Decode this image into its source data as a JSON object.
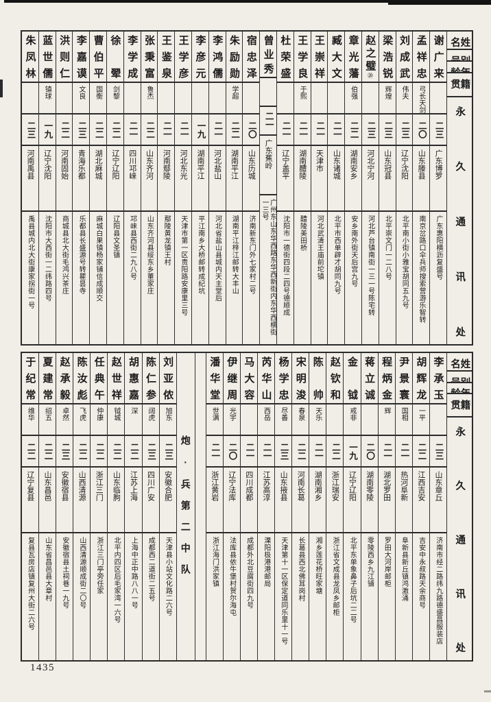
{
  "page": {
    "page_number": "1435",
    "unit_label": "炮·兵第二中队"
  },
  "headers": {
    "name": "姓名",
    "alias": "别号",
    "age": "年龄",
    "origin": "籍贯",
    "address": "永久通讯处"
  },
  "top_table": {
    "people": [
      {
        "name": "谢广来",
        "alias": "",
        "age": "二三",
        "origin": "广东博罗",
        "address": "广东惠阳横沥复盛号"
      },
      {
        "name": "孟祥忠",
        "alias": "弓长天剑",
        "age": "二〇",
        "origin": "山东滕县",
        "address": "南京岔路口伞兵师搜索营游乐智转"
      },
      {
        "name": "刘成武",
        "alias": "伟夫",
        "age": "二三",
        "origin": "辽宁沈阳",
        "address": "北平南小街小雅宝胡同五九号"
      },
      {
        "name": "梁浩锐",
        "alias": "辉煌",
        "age": "二三",
        "origin": "山东冠县",
        "address": "北平崇文门一二八号"
      },
      {
        "name": "赵之璧",
        "note": "⑳",
        "alias": "",
        "age": "二三",
        "origin": "河北宁河",
        "address": "河北芦台镇南街一三一号陈宅转"
      },
      {
        "name": "章光藩",
        "alias": "伯强",
        "age": "二二",
        "origin": "湖南安乡",
        "address": "安乡南外街天后宫九号"
      },
      {
        "name": "臧大文",
        "alias": "",
        "age": "二一",
        "origin": "山东诸城",
        "address": "北平市西单辟才胡同九号"
      },
      {
        "name": "王崇祥",
        "alias": "",
        "age": "二一",
        "origin": "天津市",
        "address": "河北武清王庙前坨镇"
      },
      {
        "name": "王学良",
        "alias": "于熙",
        "age": "二一",
        "origin": "湖南醴陵",
        "address": "醴陵美田桥"
      },
      {
        "name": "杜荣盛",
        "alias": "",
        "age": "二一",
        "origin": "辽宁盖平",
        "address": "沈阳市一德街四段二四号德顺成"
      },
      {
        "name": "曾业秀",
        "alias": "",
        "age": "二一",
        "origin": "广东蕉岭",
        "address": "广州东山东华西路东华西新街内东华西横街一三号"
      },
      {
        "name": "宿忠泽",
        "alias": "",
        "age": "二〇",
        "origin": "山东历城",
        "address": "济南新东门外七家村二号"
      },
      {
        "name": "朱励勋",
        "alias": "学超",
        "age": "二二",
        "origin": "湖南平江",
        "address": "湖南平江梓江邮转大丰山"
      },
      {
        "name": "李鸿儒",
        "alias": "",
        "age": "二一",
        "origin": "河北盐山",
        "address": "河北省盐山县城内天主堂后"
      },
      {
        "name": "李彦元",
        "alias": "",
        "age": "一九",
        "origin": "湖南平江",
        "address": "平江南乡大桥邮转成纪坑"
      },
      {
        "name": "王学彦",
        "alias": "",
        "age": "二一",
        "origin": "河北东光",
        "address": "天津市第一区贵阳路安康里三号"
      },
      {
        "name": "王鉴泉",
        "alias": "",
        "age": "二一",
        "origin": "河南鄢陵",
        "address": "鄢陵黄龙镇王村"
      },
      {
        "name": "张秉富",
        "alias": "鲁杰",
        "age": "二二",
        "origin": "山东齐河",
        "address": "山东齐河县绥东乡董家庄"
      },
      {
        "name": "李学成",
        "alias": "",
        "age": "二一",
        "origin": "四川邛崃",
        "address": "邛崃县西街二九八号"
      },
      {
        "name": "徐翚",
        "alias": "剑黎",
        "age": "二二",
        "origin": "辽宁辽阳",
        "address": "辽阳县文圣镇"
      },
      {
        "name": "曹伯平",
        "alias": "国衡",
        "age": "二二",
        "origin": "湖北麻城",
        "address": "麻城白果镇杨家铺信成顺交"
      },
      {
        "name": "李嘉谟",
        "alias": "文良",
        "age": "二三",
        "origin": "青海乐都",
        "address": "乐都县长盛源号转瞿昙寺"
      },
      {
        "name": "洪则仁",
        "alias": "",
        "age": "二二",
        "origin": "河南固始",
        "address": "商城县北大街毛鸿兴茶庄"
      },
      {
        "name": "蓝世儒",
        "alias": "镇球",
        "age": "一九",
        "origin": "辽宁沈阳",
        "address": "沈阳市大西街一二纬路四号"
      },
      {
        "name": "朱凤林",
        "alias": "",
        "age": "二三",
        "origin": "河南禹县",
        "address": "禹县城内北大街康家拐街一号"
      }
    ]
  },
  "bottom_table": {
    "people_right": [
      {
        "name": "李承玉",
        "alias": "",
        "age": "二三",
        "origin": "山东章丘",
        "address": "济南市经二路纬九路德盛昌服装店"
      },
      {
        "name": "胡辉龙",
        "alias": "一平",
        "age": "二二",
        "origin": "江西吉安",
        "address": "吉安中永叔路天余商号"
      },
      {
        "name": "尹景寰",
        "alias": "国相",
        "age": "二一",
        "origin": "热河阜新",
        "address": "阜新县新丘镇鸿激涌"
      },
      {
        "name": "程炳金",
        "alias": "辉",
        "age": "二一",
        "origin": "湖北罗田",
        "address": "罗田大河岸邮柜"
      },
      {
        "name": "蒋立诚",
        "alias": "",
        "age": "二〇",
        "origin": "湖南零陵",
        "address": "零陵西乡九江铺"
      },
      {
        "name": "金钺",
        "alias": "戒非",
        "age": "一九",
        "origin": "辽宁辽阳",
        "address": "北平东单象鼻子后坑二二号"
      },
      {
        "name": "赵钦和",
        "alias": "",
        "age": "二二",
        "origin": "浙江瑞安",
        "address": "浙江省文成县龙凤乡邮柜"
      },
      {
        "name": "陈帅",
        "alias": "天乐",
        "age": "二一",
        "origin": "湖南湘乡",
        "address": "湘乡莲花桥旺家塘"
      },
      {
        "name": "宋明浚",
        "alias": "春泉",
        "age": "二二",
        "origin": "河南长葛",
        "address": "长葛县西北佛耳岗村"
      },
      {
        "name": "杨学忠",
        "alias": "尽善",
        "age": "二三",
        "origin": "山东掖县",
        "address": "天津第十一区保定道同乐里十一号"
      },
      {
        "name": "芮华山",
        "alias": "西岳",
        "age": "二一",
        "origin": "江苏高淳",
        "address": "溧阳极港港邮局"
      },
      {
        "name": "马大容",
        "alias": "",
        "age": "二一",
        "origin": "四川成都",
        "address": "成都外北豆腐街四九号"
      },
      {
        "name": "伊继周",
        "alias": "光宇",
        "age": "二〇",
        "origin": "辽宁法库",
        "address": "法库县依牛堡村贺尔海屯"
      },
      {
        "name": "潘华堂",
        "alias": "世满",
        "age": "二一",
        "origin": "浙江黄岩",
        "address": "浙江海门洪家镇"
      }
    ],
    "people_left": [
      {
        "name": "刘亚侬",
        "alias": "旭东",
        "age": "二三",
        "origin": "安徽合肥",
        "address": "天津县小站文化路二六号"
      },
      {
        "name": "陈仁参",
        "alias": "阔虎",
        "age": "二三",
        "origin": "四川广安",
        "address": "成都西二道街二五号"
      },
      {
        "name": "胡惠嘉",
        "alias": "深",
        "age": "二二",
        "origin": "江苏上海",
        "address": "上海中正中路八八一号"
      },
      {
        "name": "赵世祥",
        "alias": "钺城",
        "age": "二二",
        "origin": "山东临朐",
        "address": "北平内四区后毛家湾一六号"
      },
      {
        "name": "任典午",
        "alias": "仲康",
        "age": "二二",
        "origin": "浙江三门",
        "address": "浙江三门亭旁任家"
      },
      {
        "name": "陈汝彪",
        "alias": "飞虎",
        "age": "二二",
        "origin": "山西清源",
        "address": "山西清源顺成街二〇号"
      },
      {
        "name": "赵承毅",
        "alias": "卓然",
        "age": "二三",
        "origin": "安徽宿县",
        "address": "安徽宿县土祠巷一九号"
      },
      {
        "name": "夏建常",
        "alias": "绍五",
        "age": "二二",
        "origin": "山东昌邑",
        "address": "山东省昌邑县大章村"
      },
      {
        "name": "于纪常",
        "alias": "维华",
        "age": "二二",
        "origin": "辽宁复县",
        "address": "复县瓦房店镇复州大街二六号"
      }
    ]
  }
}
